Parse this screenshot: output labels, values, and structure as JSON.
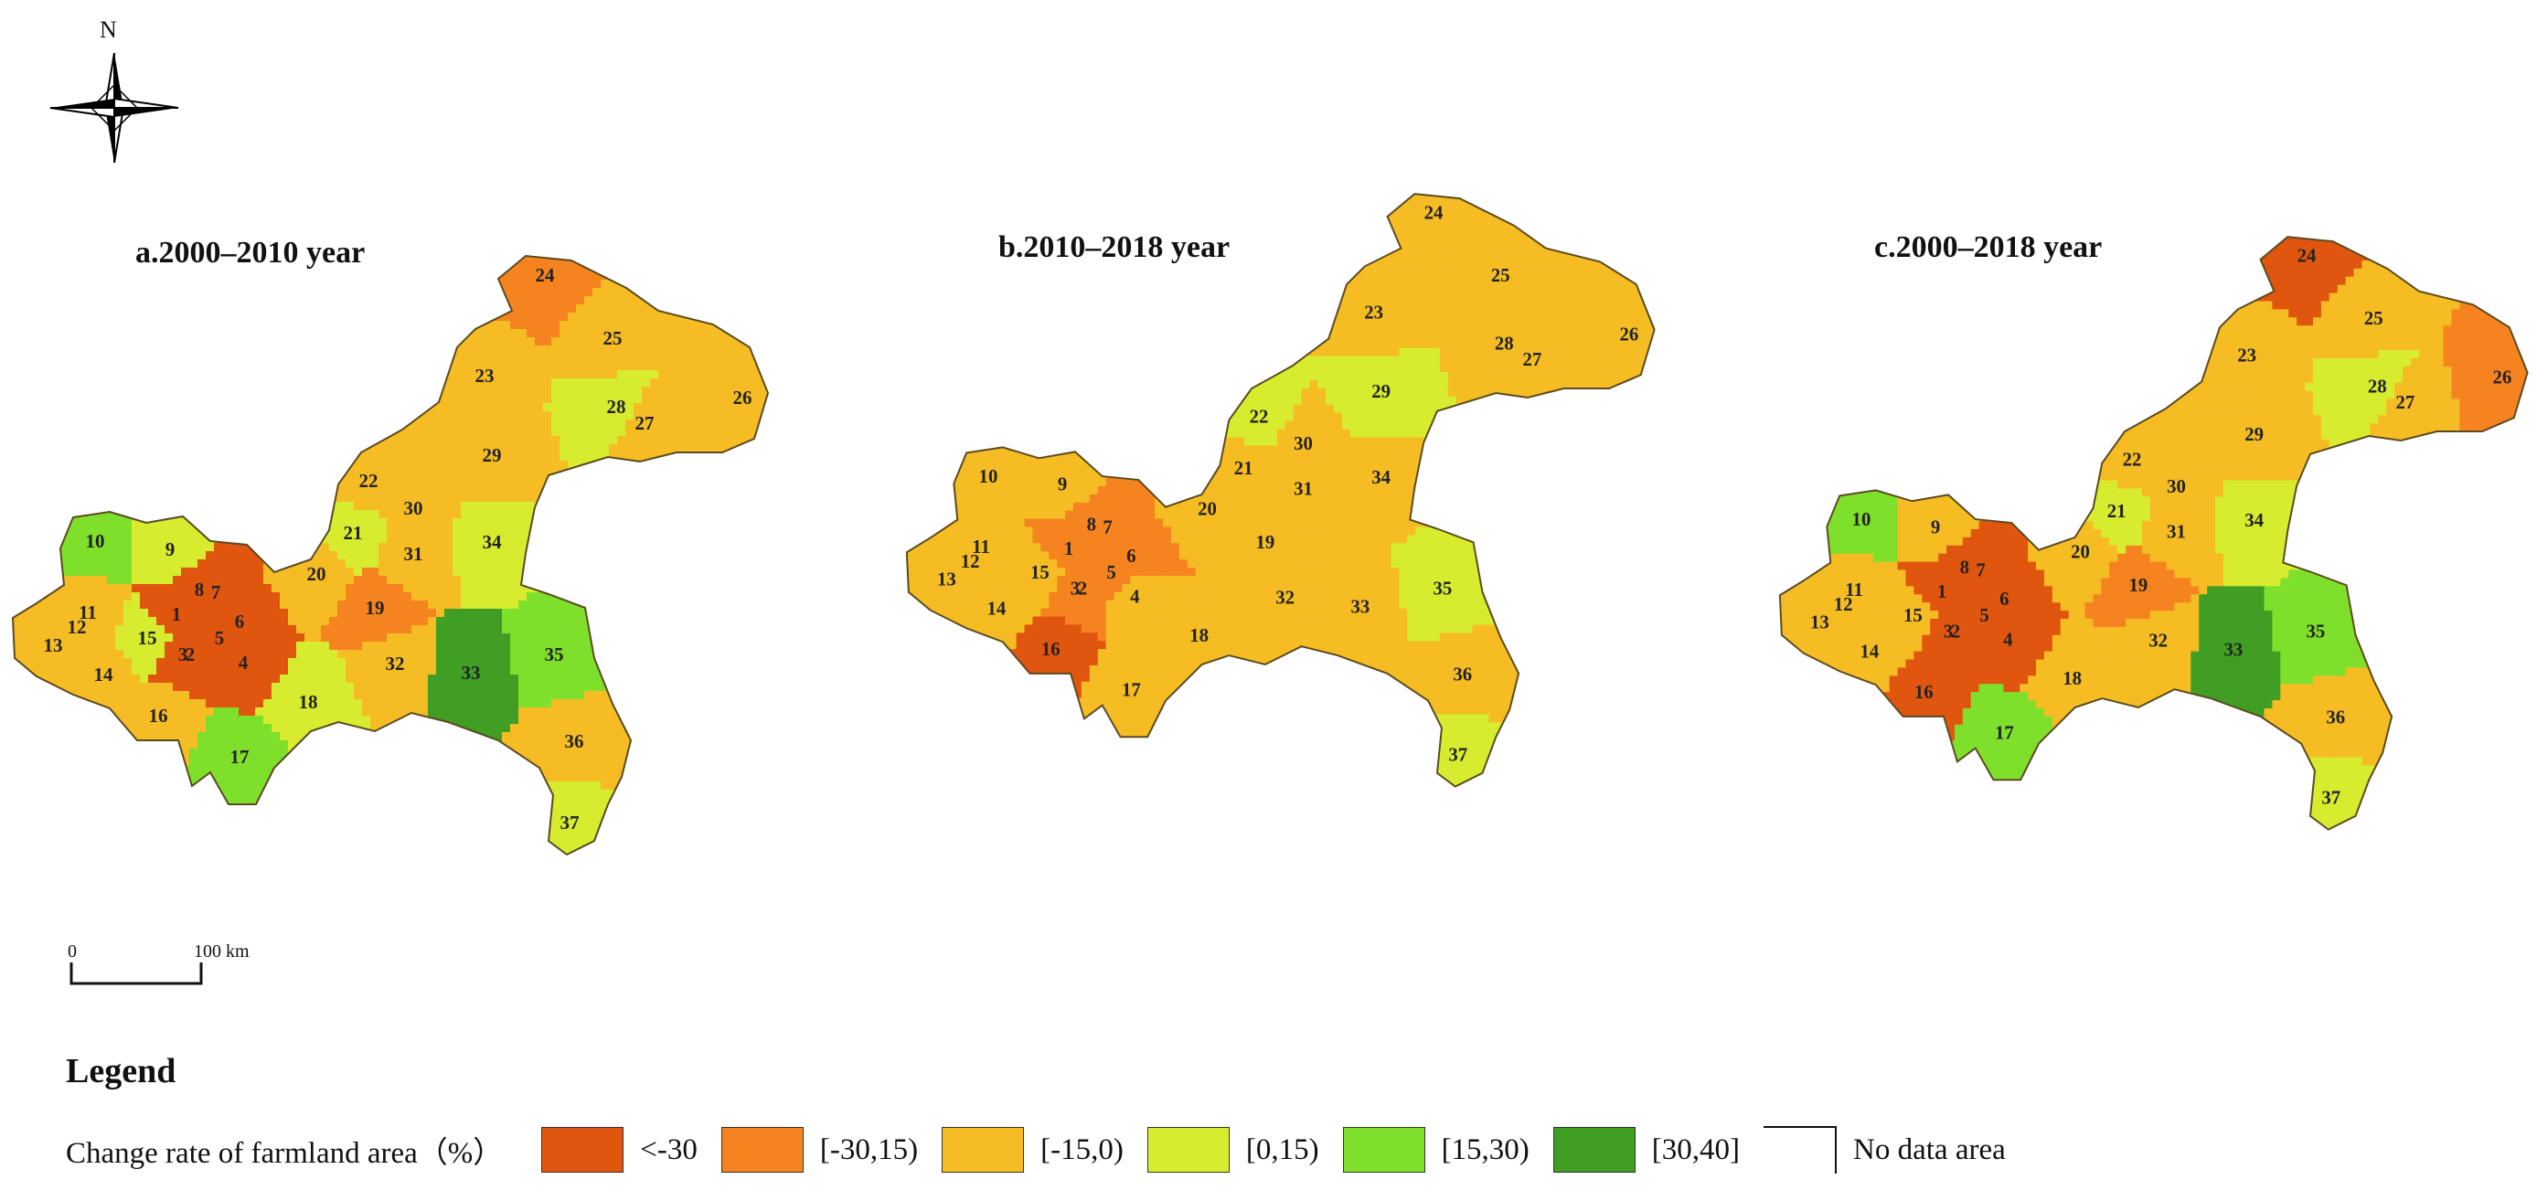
{
  "north_label": "N",
  "scale": {
    "zero": "0",
    "distance": "100 km"
  },
  "panels": [
    {
      "title": "a.2000–2010 year"
    },
    {
      "title": "b.2010–2018 year"
    },
    {
      "title": "c.2000–2018 year"
    }
  ],
  "legend": {
    "title": "Legend",
    "caption": "Change rate of farmland area（%）",
    "classes": [
      {
        "label": "<-30",
        "color": "#e0560f"
      },
      {
        "label": "[-30,15)",
        "color": "#f58320"
      },
      {
        "label": "[-15,0)",
        "color": "#f5bd23"
      },
      {
        "label": "[0,15)",
        "color": "#d7ec2f"
      },
      {
        "label": "[15,30)",
        "color": "#7fe02c"
      },
      {
        "label": "[30,40]",
        "color": "#3f9e23"
      }
    ],
    "no_data_label": "No data area"
  },
  "district_ids": [
    "1",
    "2",
    "3",
    "4",
    "5",
    "6",
    "7",
    "8",
    "9",
    "10",
    "11",
    "12",
    "13",
    "14",
    "15",
    "16",
    "17",
    "18",
    "19",
    "20",
    "21",
    "22",
    "23",
    "24",
    "25",
    "26",
    "27",
    "28",
    "29",
    "30",
    "31",
    "32",
    "33",
    "34",
    "35",
    "36",
    "37"
  ],
  "classification": {
    "a": {
      "1": 0,
      "2": 0,
      "3": 0,
      "4": 0,
      "5": 0,
      "6": 0,
      "7": 0,
      "8": 0,
      "9": 3,
      "10": 4,
      "11": 2,
      "12": 2,
      "13": 2,
      "14": 2,
      "15": 3,
      "16": 2,
      "17": 4,
      "18": 3,
      "19": 1,
      "20": 2,
      "21": 3,
      "22": 2,
      "23": 2,
      "24": 1,
      "25": 2,
      "26": 2,
      "27": 2,
      "28": 3,
      "29": 2,
      "30": 2,
      "31": 2,
      "32": 2,
      "33": 5,
      "34": 3,
      "35": 4,
      "36": 2,
      "37": 3
    },
    "b": {
      "1": 1,
      "2": 1,
      "3": 1,
      "4": 2,
      "5": 1,
      "6": 1,
      "7": 1,
      "8": 1,
      "9": 2,
      "10": 2,
      "11": 2,
      "12": 2,
      "13": 2,
      "14": 2,
      "15": 2,
      "16": 0,
      "17": 2,
      "18": 2,
      "19": 2,
      "20": 2,
      "21": 2,
      "22": 3,
      "23": 2,
      "24": 2,
      "25": 2,
      "26": 2,
      "27": 2,
      "28": 2,
      "29": 3,
      "30": 2,
      "31": 2,
      "32": 2,
      "33": 2,
      "34": 2,
      "35": 3,
      "36": 2,
      "37": 3
    },
    "c": {
      "1": 0,
      "2": 0,
      "3": 0,
      "4": 0,
      "5": 0,
      "6": 0,
      "7": 0,
      "8": 0,
      "9": 2,
      "10": 4,
      "11": 2,
      "12": 2,
      "13": 2,
      "14": 2,
      "15": 2,
      "16": 0,
      "17": 4,
      "18": 2,
      "19": 1,
      "20": 2,
      "21": 3,
      "22": 2,
      "23": 2,
      "24": 0,
      "25": 2,
      "26": 1,
      "27": 2,
      "28": 3,
      "29": 2,
      "30": 2,
      "31": 2,
      "32": 2,
      "33": 5,
      "34": 3,
      "35": 4,
      "36": 2,
      "37": 3
    }
  }
}
